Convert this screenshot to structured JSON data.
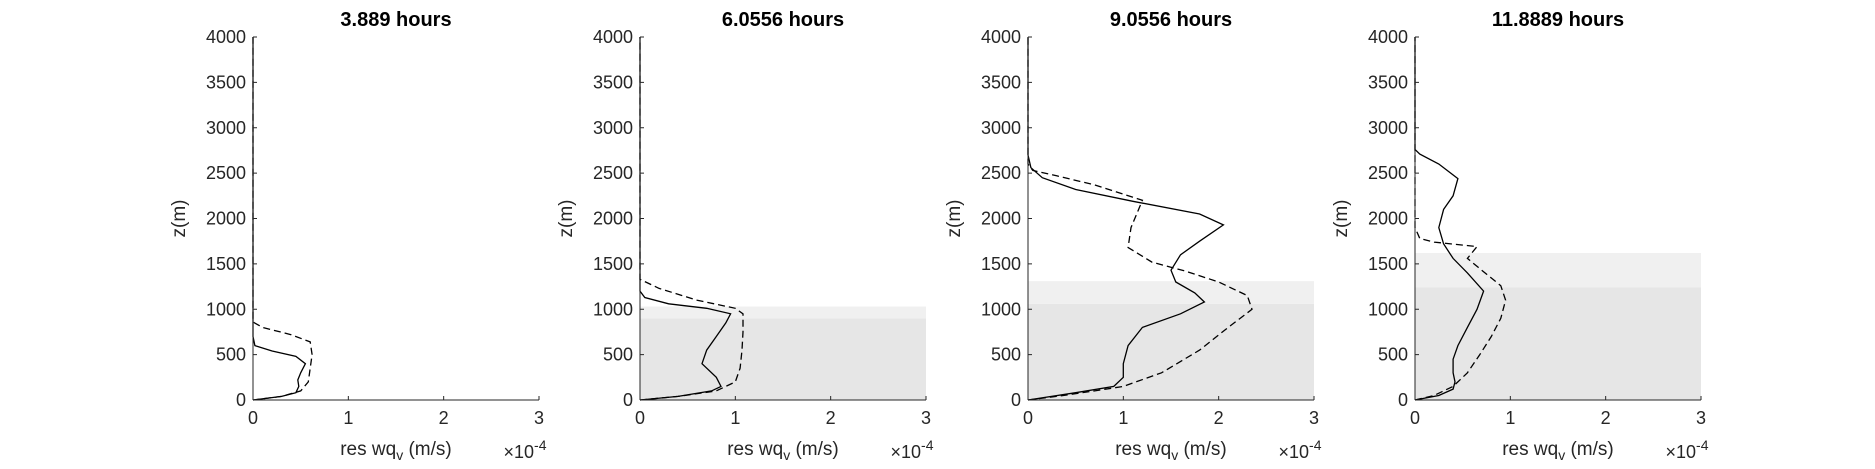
{
  "chart_data": [
    {
      "type": "line",
      "title": "3.889 hours",
      "xlabel": "res wq_v (m/s)",
      "ylabel": "z(m)",
      "x_multiplier": "×10^-4",
      "xlim": [
        0,
        3
      ],
      "ylim": [
        0,
        4000
      ],
      "xticks": [
        0,
        1,
        2,
        3
      ],
      "yticks": [
        0,
        500,
        1000,
        1500,
        2000,
        2500,
        3000,
        3500,
        4000
      ],
      "shading": [],
      "series": [
        {
          "style": "solid",
          "points": [
            [
              0,
              0
            ],
            [
              0.3,
              40
            ],
            [
              0.45,
              80
            ],
            [
              0.48,
              150
            ],
            [
              0.47,
              220
            ],
            [
              0.5,
              300
            ],
            [
              0.55,
              400
            ],
            [
              0.45,
              480
            ],
            [
              0.2,
              540
            ],
            [
              0.02,
              600
            ],
            [
              0,
              700
            ],
            [
              0,
              1000
            ],
            [
              0,
              4000
            ]
          ]
        },
        {
          "style": "dashed",
          "points": [
            [
              0,
              0
            ],
            [
              0.3,
              40
            ],
            [
              0.5,
              100
            ],
            [
              0.58,
              200
            ],
            [
              0.6,
              350
            ],
            [
              0.62,
              500
            ],
            [
              0.6,
              640
            ],
            [
              0.4,
              720
            ],
            [
              0.1,
              800
            ],
            [
              0,
              860
            ],
            [
              0,
              1000
            ],
            [
              0,
              4000
            ]
          ]
        }
      ]
    },
    {
      "type": "line",
      "title": "6.0556 hours",
      "xlabel": "res wq_v (m/s)",
      "ylabel": "z(m)",
      "x_multiplier": "×10^-4",
      "xlim": [
        0,
        3
      ],
      "ylim": [
        0,
        4000
      ],
      "xticks": [
        0,
        1,
        2,
        3
      ],
      "yticks": [
        0,
        500,
        1000,
        1500,
        2000,
        2500,
        3000,
        3500,
        4000
      ],
      "shading": [
        [
          0,
          900,
          "#e6e6e6"
        ],
        [
          900,
          1030,
          "#f0f0f0"
        ]
      ],
      "series": [
        {
          "style": "solid",
          "points": [
            [
              0,
              0
            ],
            [
              0.4,
              40
            ],
            [
              0.75,
              100
            ],
            [
              0.85,
              150
            ],
            [
              0.8,
              250
            ],
            [
              0.65,
              400
            ],
            [
              0.7,
              550
            ],
            [
              0.8,
              700
            ],
            [
              0.9,
              850
            ],
            [
              0.95,
              950
            ],
            [
              0.7,
              1010
            ],
            [
              0.3,
              1060
            ],
            [
              0.05,
              1130
            ],
            [
              0,
              1200
            ],
            [
              0,
              1300
            ],
            [
              0,
              4000
            ]
          ]
        },
        {
          "style": "dashed",
          "points": [
            [
              0,
              0
            ],
            [
              0.4,
              40
            ],
            [
              0.8,
              100
            ],
            [
              1.0,
              200
            ],
            [
              1.05,
              350
            ],
            [
              1.07,
              550
            ],
            [
              1.08,
              750
            ],
            [
              1.08,
              950
            ],
            [
              1.0,
              1010
            ],
            [
              0.6,
              1100
            ],
            [
              0.2,
              1230
            ],
            [
              0,
              1330
            ],
            [
              0,
              1400
            ],
            [
              0,
              4000
            ]
          ]
        }
      ]
    },
    {
      "type": "line",
      "title": "9.0556 hours",
      "xlabel": "res wq_v (m/s)",
      "ylabel": "z(m)",
      "x_multiplier": "×10^-4",
      "xlim": [
        0,
        3
      ],
      "ylim": [
        0,
        4000
      ],
      "xticks": [
        0,
        1,
        2,
        3
      ],
      "yticks": [
        0,
        500,
        1000,
        1500,
        2000,
        2500,
        3000,
        3500,
        4000
      ],
      "shading": [
        [
          0,
          1060,
          "#e6e6e6"
        ],
        [
          1060,
          1310,
          "#f0f0f0"
        ]
      ],
      "series": [
        {
          "style": "solid",
          "points": [
            [
              0,
              0
            ],
            [
              0.5,
              80
            ],
            [
              0.9,
              150
            ],
            [
              1.0,
              250
            ],
            [
              1.0,
              400
            ],
            [
              1.05,
              600
            ],
            [
              1.2,
              800
            ],
            [
              1.6,
              950
            ],
            [
              1.85,
              1080
            ],
            [
              1.75,
              1180
            ],
            [
              1.55,
              1300
            ],
            [
              1.5,
              1430
            ],
            [
              1.6,
              1600
            ],
            [
              1.8,
              1750
            ],
            [
              2.05,
              1930
            ],
            [
              1.8,
              2050
            ],
            [
              1.1,
              2190
            ],
            [
              0.5,
              2320
            ],
            [
              0.15,
              2450
            ],
            [
              0.03,
              2560
            ],
            [
              0,
              2700
            ],
            [
              0,
              2780
            ],
            [
              0,
              4000
            ]
          ]
        },
        {
          "style": "dashed",
          "points": [
            [
              0,
              0
            ],
            [
              0.3,
              40
            ],
            [
              0.7,
              100
            ],
            [
              1.0,
              150
            ],
            [
              1.4,
              300
            ],
            [
              1.8,
              550
            ],
            [
              2.1,
              800
            ],
            [
              2.35,
              1000
            ],
            [
              2.3,
              1150
            ],
            [
              2.0,
              1300
            ],
            [
              1.65,
              1420
            ],
            [
              1.3,
              1520
            ],
            [
              1.05,
              1680
            ],
            [
              1.08,
              1900
            ],
            [
              1.2,
              2200
            ],
            [
              0.7,
              2370
            ],
            [
              0.3,
              2470
            ],
            [
              0.05,
              2530
            ],
            [
              0,
              2600
            ],
            [
              0,
              2650
            ],
            [
              0,
              4000
            ]
          ]
        }
      ]
    },
    {
      "type": "line",
      "title": "11.8889 hours",
      "xlabel": "res wq_v (m/s)",
      "ylabel": "z(m)",
      "x_multiplier": "×10^-4",
      "xlim": [
        0,
        3
      ],
      "ylim": [
        0,
        4000
      ],
      "xticks": [
        0,
        1,
        2,
        3
      ],
      "yticks": [
        0,
        500,
        1000,
        1500,
        2000,
        2500,
        3000,
        3500,
        4000
      ],
      "shading": [
        [
          0,
          1240,
          "#e6e6e6"
        ],
        [
          1240,
          1620,
          "#f0f0f0"
        ]
      ],
      "series": [
        {
          "style": "solid",
          "points": [
            [
              0,
              0
            ],
            [
              0.25,
              50
            ],
            [
              0.4,
              120
            ],
            [
              0.42,
              200
            ],
            [
              0.4,
              300
            ],
            [
              0.4,
              450
            ],
            [
              0.45,
              600
            ],
            [
              0.55,
              800
            ],
            [
              0.65,
              1000
            ],
            [
              0.72,
              1200
            ],
            [
              0.55,
              1400
            ],
            [
              0.4,
              1560
            ],
            [
              0.3,
              1720
            ],
            [
              0.25,
              1900
            ],
            [
              0.3,
              2100
            ],
            [
              0.4,
              2250
            ],
            [
              0.45,
              2440
            ],
            [
              0.25,
              2600
            ],
            [
              0.05,
              2710
            ],
            [
              0,
              2760
            ],
            [
              0,
              4000
            ]
          ]
        },
        {
          "style": "dashed",
          "points": [
            [
              0,
              0
            ],
            [
              0.2,
              50
            ],
            [
              0.4,
              150
            ],
            [
              0.55,
              300
            ],
            [
              0.68,
              500
            ],
            [
              0.8,
              700
            ],
            [
              0.9,
              900
            ],
            [
              0.95,
              1100
            ],
            [
              0.9,
              1260
            ],
            [
              0.7,
              1430
            ],
            [
              0.55,
              1560
            ],
            [
              0.65,
              1690
            ],
            [
              0.2,
              1740
            ],
            [
              0.05,
              1780
            ],
            [
              0,
              1900
            ],
            [
              0,
              2300
            ],
            [
              0,
              4000
            ]
          ]
        }
      ]
    }
  ]
}
